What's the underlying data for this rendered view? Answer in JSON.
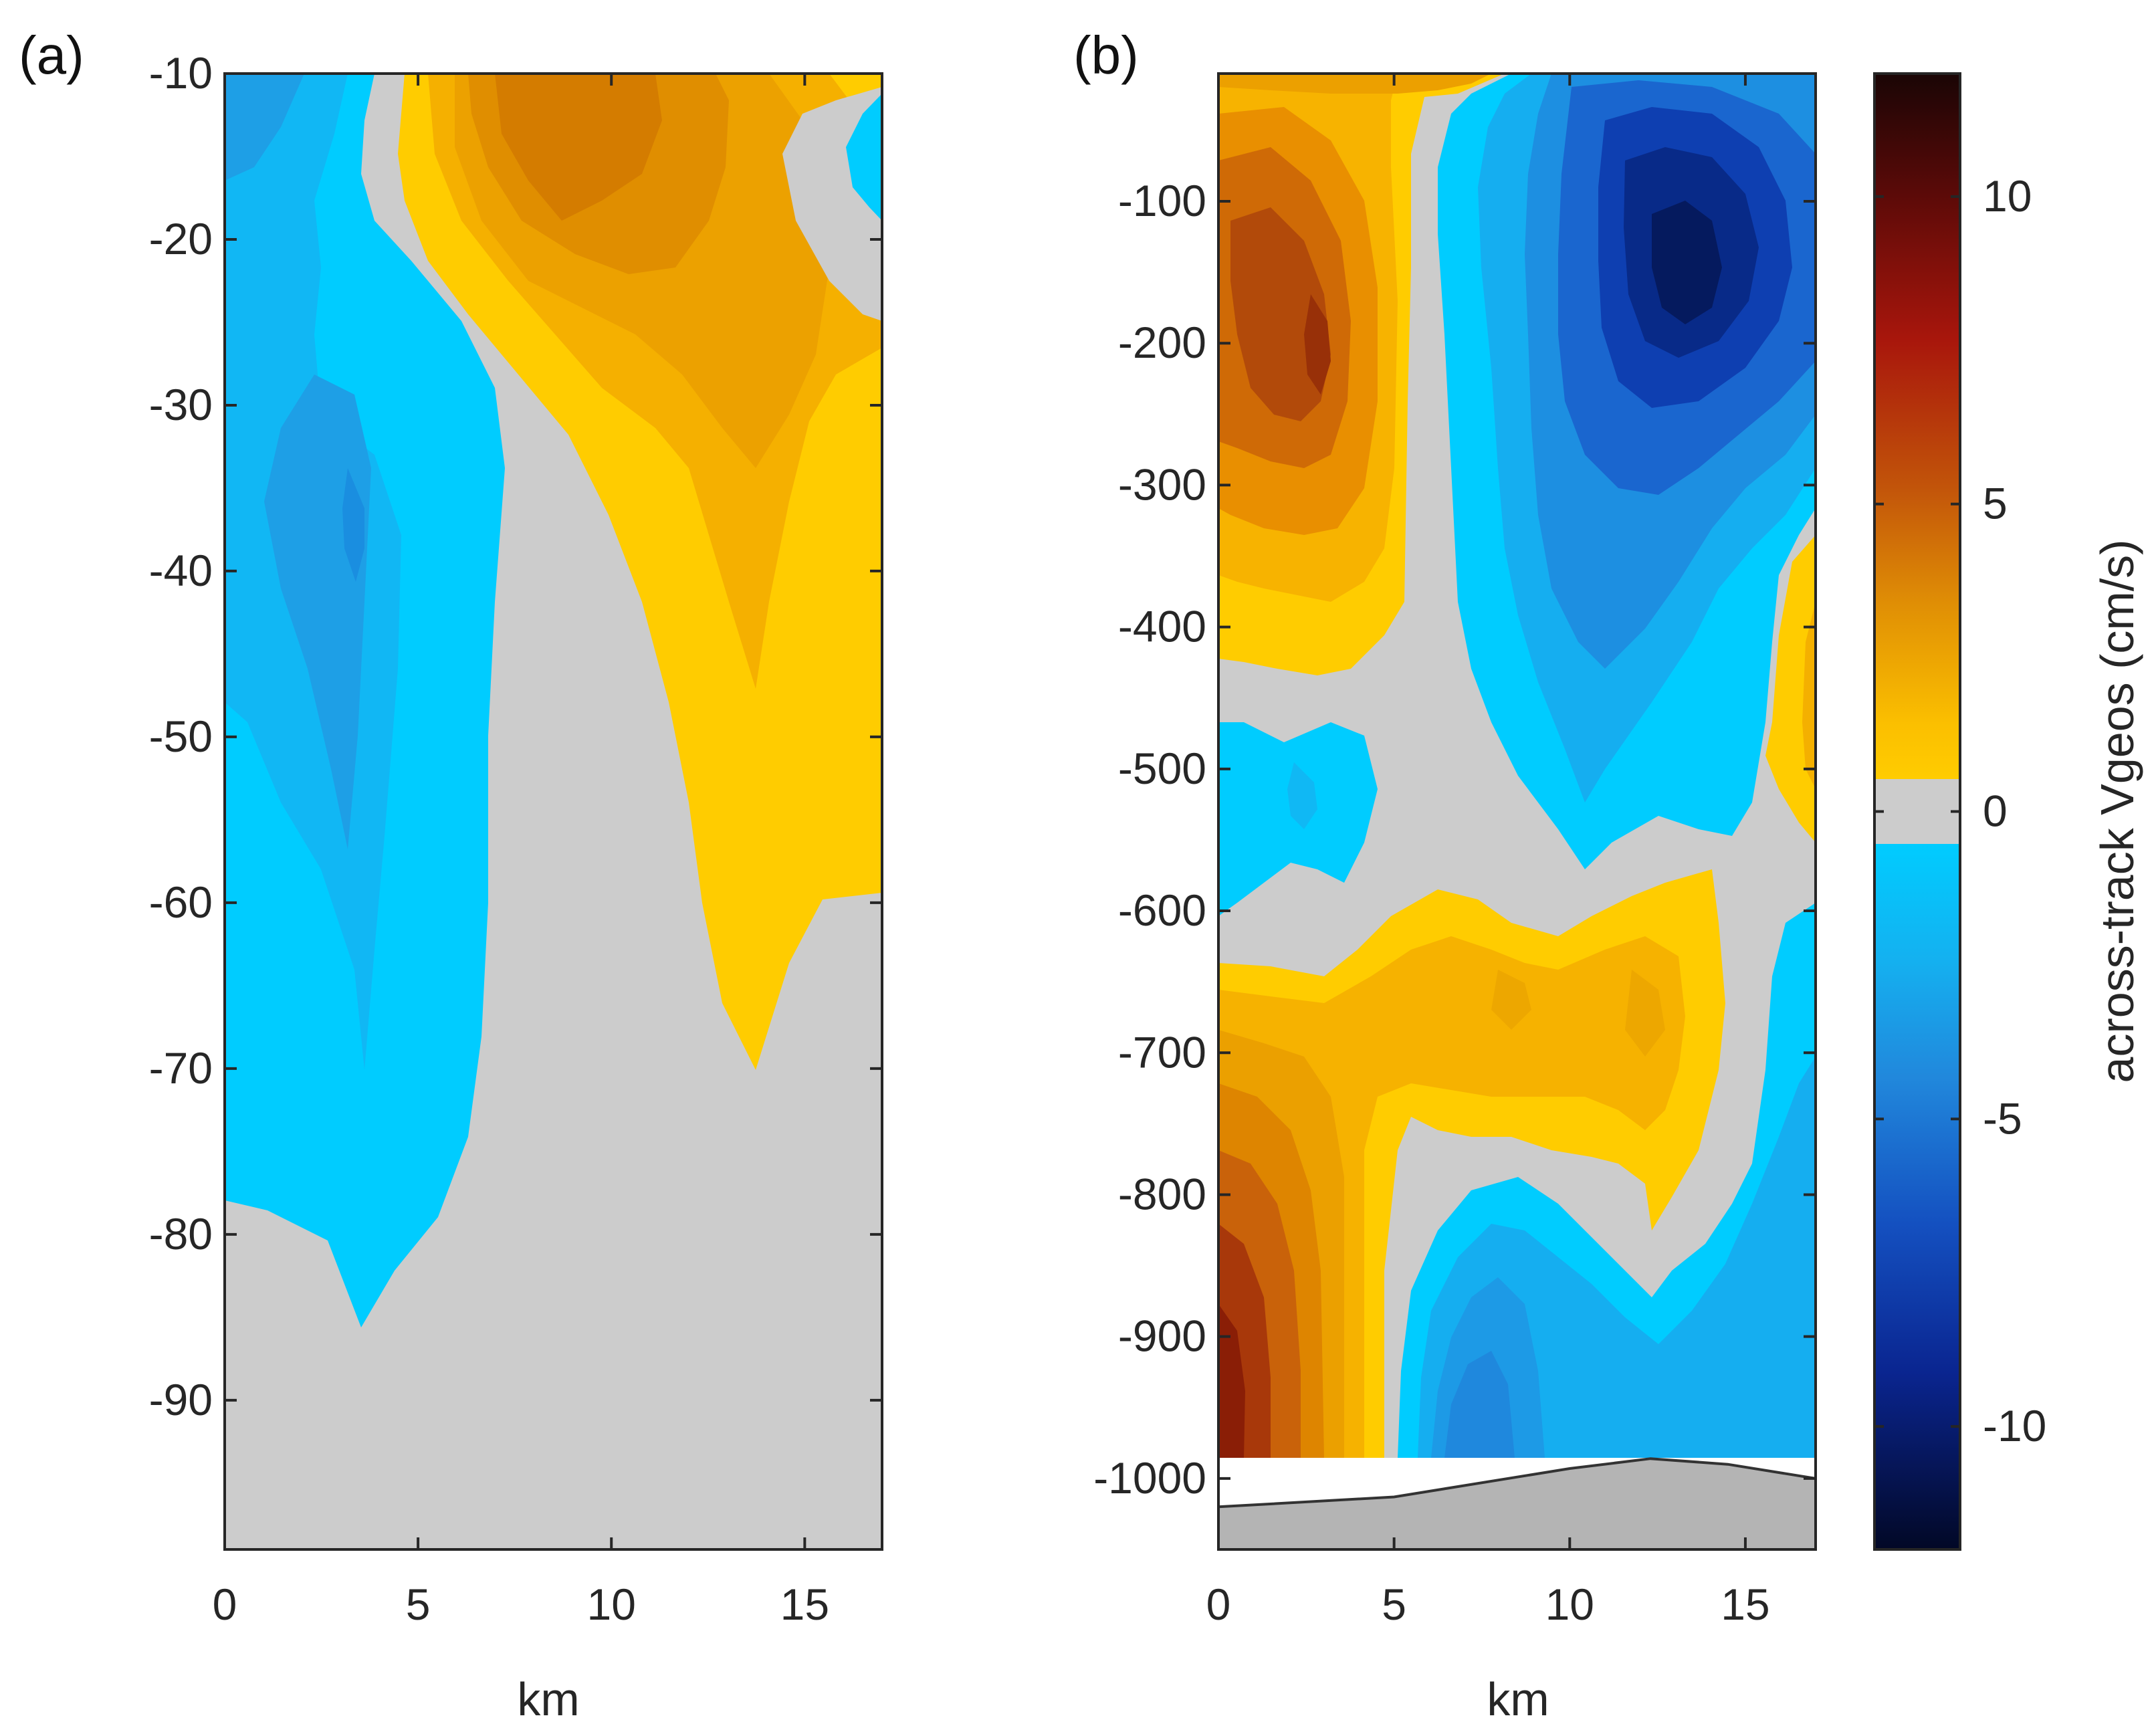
{
  "colors": {
    "gray": "#cccccc",
    "cyan": "#00ccff",
    "blue1": "#11b7f4",
    "blue2": "#1e9fe6",
    "blue3": "#1a72d6",
    "blue4": "#0d3fb0",
    "blue5": "#061a6b",
    "yellow": "#ffcc00",
    "orange1": "#f5b000",
    "orange2": "#e99600",
    "orange3": "#d46f05",
    "red1": "#b84209",
    "red2": "#8e1b05",
    "seafloor": "#b4b4b4"
  },
  "chart_data": [
    {
      "type": "contour",
      "panel_label": "(a)",
      "xlabel": "",
      "ylabel": "",
      "xlim": [
        0,
        17
      ],
      "ylim": [
        -99,
        -10
      ],
      "x_ticks": [
        0,
        5,
        10,
        15
      ],
      "x_tick_labels": [
        "0",
        "5",
        "10",
        "15"
      ],
      "y_ticks": [
        -10,
        -20,
        -30,
        -40,
        -50,
        -60,
        -70,
        -80,
        -90
      ],
      "y_tick_labels": [
        "-10",
        "-20",
        "-30",
        "-40",
        "-50",
        "-60",
        "-70",
        "-80",
        "-90"
      ],
      "features": [
        {
          "name": "westward-flow-core",
          "sign": "negative",
          "x_km": 3.5,
          "depth": -38,
          "approx_max": -2
        },
        {
          "name": "eastward-flow-core",
          "sign": "positive",
          "x_km": 8.8,
          "depth": -15,
          "approx_max": 3
        },
        {
          "name": "east-edge-negative-patch",
          "sign": "negative",
          "x_km": 16.8,
          "depth": -14,
          "approx_max": -1
        }
      ]
    },
    {
      "type": "contour",
      "panel_label": "(b)",
      "xlabel": "km",
      "ylabel": "",
      "xlim": [
        0,
        17
      ],
      "ylim": [
        -1050,
        -10
      ],
      "x_ticks": [
        0,
        5,
        10,
        15
      ],
      "x_tick_labels": [
        "0",
        "5",
        "10",
        "15"
      ],
      "y_ticks": [
        -100,
        -200,
        -300,
        -400,
        -500,
        -600,
        -700,
        -800,
        -900,
        -1000
      ],
      "y_tick_labels": [
        "-100",
        "-200",
        "-300",
        "-400",
        "-500",
        "-600",
        "-700",
        "-800",
        "-900",
        "-1000"
      ],
      "features": [
        {
          "name": "positive-upper-core",
          "sign": "positive",
          "x_km": 3.3,
          "depth": -210,
          "approx_max": 7
        },
        {
          "name": "negative-upper-core",
          "sign": "negative",
          "x_km": 12.0,
          "depth": -170,
          "approx_max": -11
        },
        {
          "name": "positive-deep-core",
          "sign": "positive",
          "x_km": 0.3,
          "depth": -950,
          "approx_max": 8
        },
        {
          "name": "negative-deep-core",
          "sign": "negative",
          "x_km": 8.0,
          "depth": -950,
          "approx_max": -3
        }
      ],
      "seafloor_depth": [
        {
          "x_km": 0,
          "depth": -1020
        },
        {
          "x_km": 5,
          "depth": -1013
        },
        {
          "x_km": 10,
          "depth": -993
        },
        {
          "x_km": 12.3,
          "depth": -986
        },
        {
          "x_km": 14.5,
          "depth": -990
        },
        {
          "x_km": 17,
          "depth": -1000
        }
      ]
    },
    {
      "type": "colorbar",
      "label": "across-track Vgeos (cm/s)",
      "range": [
        -12,
        12
      ],
      "ticks": [
        10,
        5,
        0,
        -5,
        -10
      ],
      "tick_labels": [
        "10",
        "5",
        "0",
        "-5",
        "-10"
      ],
      "zero_band": [
        -0.5,
        0.5
      ]
    }
  ],
  "labels": {
    "a_xlabel": "km",
    "b_xlabel": "km"
  }
}
